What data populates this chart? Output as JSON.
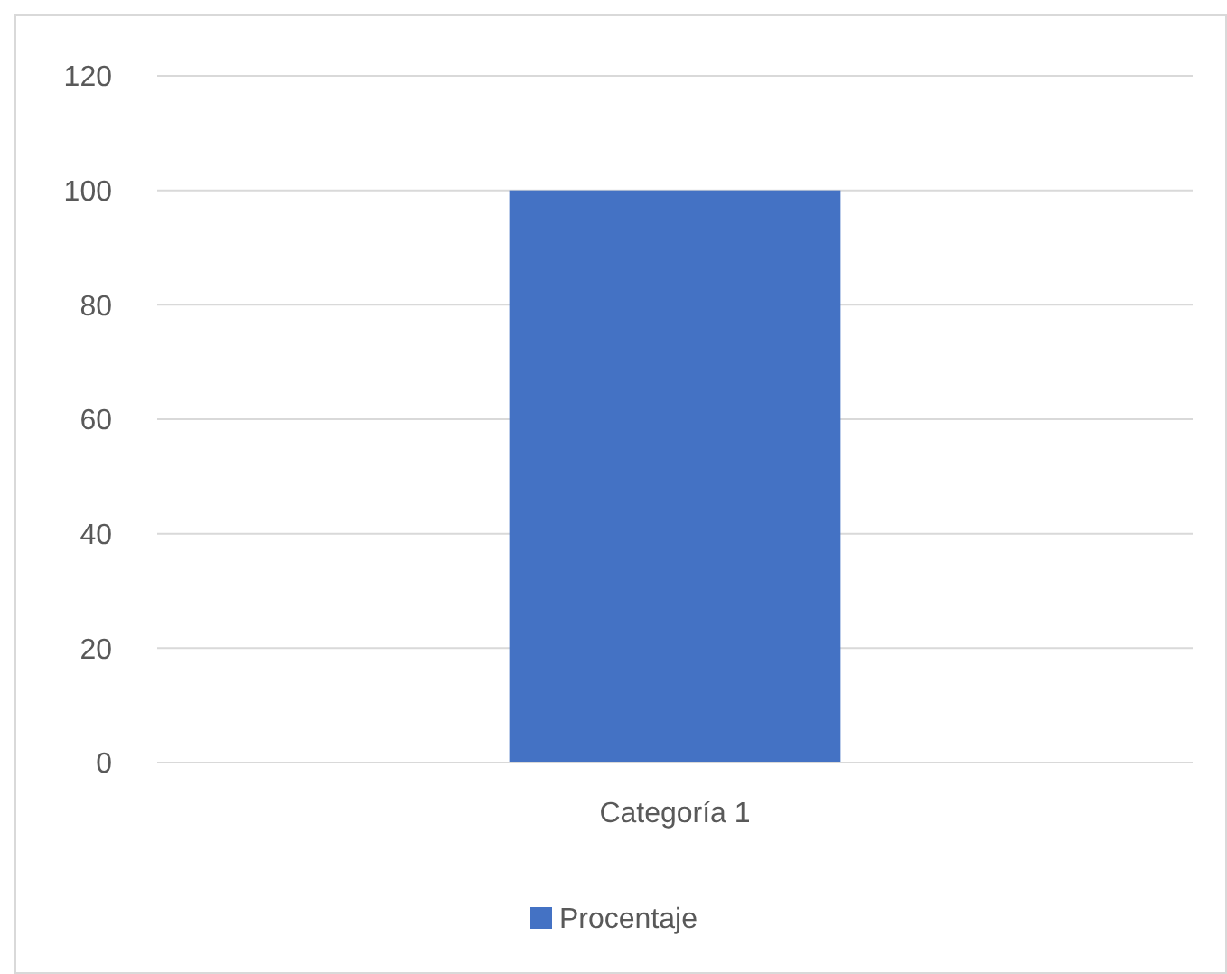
{
  "chart_data": {
    "type": "bar",
    "categories": [
      "Categoría 1"
    ],
    "series": [
      {
        "name": "Procentaje",
        "color": "#4472c4",
        "values": [
          100
        ]
      }
    ],
    "ylim": [
      0,
      120
    ],
    "yticks": [
      0,
      20,
      40,
      60,
      80,
      100,
      120
    ],
    "grid": "y",
    "legend": "bottom"
  }
}
